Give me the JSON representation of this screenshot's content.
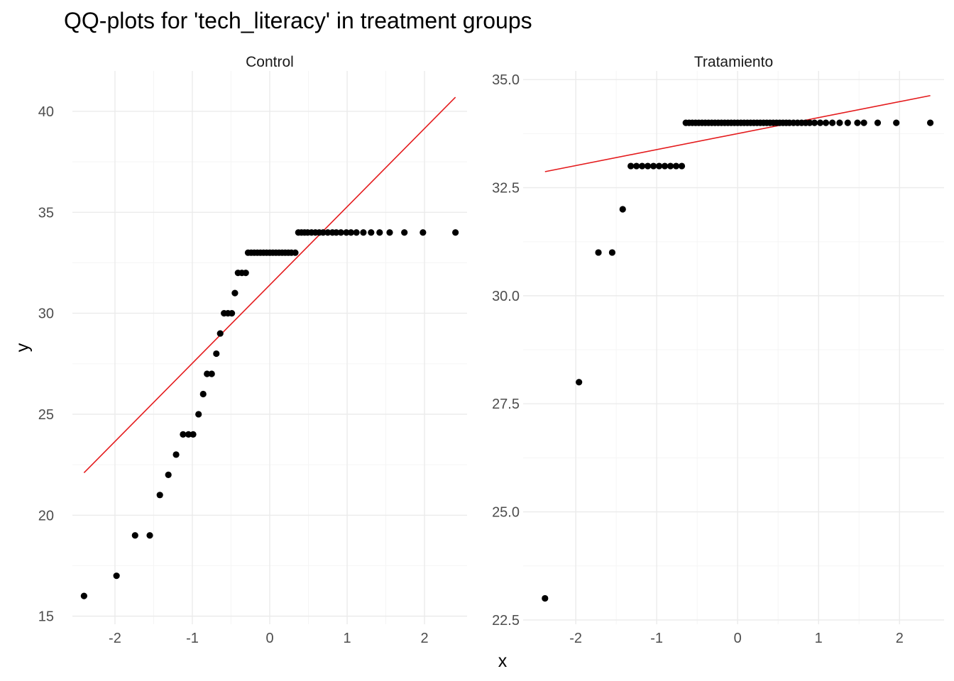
{
  "chart_data": {
    "type": "scatter",
    "title": "QQ-plots for 'tech_literacy' in treatment groups",
    "xlabel": "x",
    "ylabel": "y",
    "grid": true,
    "legend": "none",
    "colors": {
      "points": "#000000",
      "line": "#e41a1c",
      "grid_major": "#ebebeb",
      "grid_minor": "#f5f5f5"
    },
    "panels": [
      {
        "name": "Control",
        "xlim": [
          -2.55,
          2.55
        ],
        "ylim": [
          14.6,
          42.0
        ],
        "x_ticks": [
          -2,
          -1,
          0,
          1,
          2
        ],
        "x_tick_labels": [
          "-2",
          "-1",
          "0",
          "1",
          "2"
        ],
        "y_ticks": [
          15,
          20,
          25,
          30,
          35,
          40
        ],
        "y_tick_labels": [
          "15",
          "20",
          "25",
          "30",
          "35",
          "40"
        ],
        "points": [
          [
            -2.4,
            16
          ],
          [
            -1.98,
            17
          ],
          [
            -1.74,
            19
          ],
          [
            -1.55,
            19
          ],
          [
            -1.42,
            21
          ],
          [
            -1.31,
            22
          ],
          [
            -1.21,
            23
          ],
          [
            -1.12,
            24
          ],
          [
            -1.05,
            24
          ],
          [
            -0.99,
            24
          ],
          [
            -0.92,
            25
          ],
          [
            -0.86,
            26
          ],
          [
            -0.81,
            27
          ],
          [
            -0.75,
            27
          ],
          [
            -0.69,
            28
          ],
          [
            -0.64,
            29
          ],
          [
            -0.59,
            30
          ],
          [
            -0.54,
            30
          ],
          [
            -0.49,
            30
          ],
          [
            -0.45,
            31
          ],
          [
            -0.41,
            32
          ],
          [
            -0.36,
            32
          ],
          [
            -0.31,
            32
          ],
          [
            -0.28,
            33
          ],
          [
            -0.24,
            33
          ],
          [
            -0.2,
            33
          ],
          [
            -0.16,
            33
          ],
          [
            -0.12,
            33
          ],
          [
            -0.08,
            33
          ],
          [
            -0.04,
            33
          ],
          [
            0.0,
            33
          ],
          [
            0.04,
            33
          ],
          [
            0.08,
            33
          ],
          [
            0.12,
            33
          ],
          [
            0.16,
            33
          ],
          [
            0.2,
            33
          ],
          [
            0.24,
            33
          ],
          [
            0.28,
            33
          ],
          [
            0.33,
            33
          ],
          [
            0.37,
            34
          ],
          [
            0.41,
            34
          ],
          [
            0.45,
            34
          ],
          [
            0.49,
            34
          ],
          [
            0.54,
            34
          ],
          [
            0.59,
            34
          ],
          [
            0.64,
            34
          ],
          [
            0.69,
            34
          ],
          [
            0.75,
            34
          ],
          [
            0.81,
            34
          ],
          [
            0.86,
            34
          ],
          [
            0.92,
            34
          ],
          [
            0.99,
            34
          ],
          [
            1.05,
            34
          ],
          [
            1.12,
            34
          ],
          [
            1.21,
            34
          ],
          [
            1.31,
            34
          ],
          [
            1.42,
            34
          ],
          [
            1.55,
            34
          ],
          [
            1.74,
            34
          ],
          [
            1.98,
            34
          ],
          [
            2.4,
            34
          ]
        ],
        "line": {
          "x": [
            -2.4,
            2.4
          ],
          "y": [
            22.1,
            40.7
          ]
        }
      },
      {
        "name": "Tratamiento",
        "xlim": [
          -2.65,
          2.55
        ],
        "ylim": [
          22.4,
          35.2
        ],
        "x_ticks": [
          -2,
          -1,
          0,
          1,
          2
        ],
        "x_tick_labels": [
          "-2",
          "-1",
          "0",
          "1",
          "2"
        ],
        "y_ticks": [
          22.5,
          25,
          27.5,
          30,
          32.5,
          35
        ],
        "y_tick_labels": [
          "22.5",
          "25.0",
          "27.5",
          "30.0",
          "32.5",
          "35.0"
        ],
        "points": [
          [
            -2.38,
            23
          ],
          [
            -1.96,
            28
          ],
          [
            -1.72,
            31
          ],
          [
            -1.55,
            31
          ],
          [
            -1.42,
            32
          ],
          [
            -1.32,
            33
          ],
          [
            -1.25,
            33
          ],
          [
            -1.18,
            33
          ],
          [
            -1.11,
            33
          ],
          [
            -1.04,
            33
          ],
          [
            -0.97,
            33
          ],
          [
            -0.9,
            33
          ],
          [
            -0.83,
            33
          ],
          [
            -0.76,
            33
          ],
          [
            -0.69,
            33
          ],
          [
            -0.64,
            34
          ],
          [
            -0.6,
            34
          ],
          [
            -0.56,
            34
          ],
          [
            -0.52,
            34
          ],
          [
            -0.48,
            34
          ],
          [
            -0.44,
            34
          ],
          [
            -0.4,
            34
          ],
          [
            -0.36,
            34
          ],
          [
            -0.32,
            34
          ],
          [
            -0.28,
            34
          ],
          [
            -0.24,
            34
          ],
          [
            -0.2,
            34
          ],
          [
            -0.16,
            34
          ],
          [
            -0.12,
            34
          ],
          [
            -0.08,
            34
          ],
          [
            -0.04,
            34
          ],
          [
            0.0,
            34
          ],
          [
            0.04,
            34
          ],
          [
            0.08,
            34
          ],
          [
            0.12,
            34
          ],
          [
            0.16,
            34
          ],
          [
            0.2,
            34
          ],
          [
            0.24,
            34
          ],
          [
            0.28,
            34
          ],
          [
            0.32,
            34
          ],
          [
            0.36,
            34
          ],
          [
            0.4,
            34
          ],
          [
            0.44,
            34
          ],
          [
            0.48,
            34
          ],
          [
            0.52,
            34
          ],
          [
            0.56,
            34
          ],
          [
            0.6,
            34
          ],
          [
            0.64,
            34
          ],
          [
            0.69,
            34
          ],
          [
            0.74,
            34
          ],
          [
            0.79,
            34
          ],
          [
            0.84,
            34
          ],
          [
            0.89,
            34
          ],
          [
            0.95,
            34
          ],
          [
            1.02,
            34
          ],
          [
            1.09,
            34
          ],
          [
            1.17,
            34
          ],
          [
            1.26,
            34
          ],
          [
            1.36,
            34
          ],
          [
            1.48,
            34
          ],
          [
            1.56,
            34
          ],
          [
            1.73,
            34
          ],
          [
            1.96,
            34
          ],
          [
            2.38,
            34
          ]
        ],
        "line": {
          "x": [
            -2.38,
            2.38
          ],
          "y": [
            32.87,
            34.63
          ]
        }
      }
    ]
  }
}
